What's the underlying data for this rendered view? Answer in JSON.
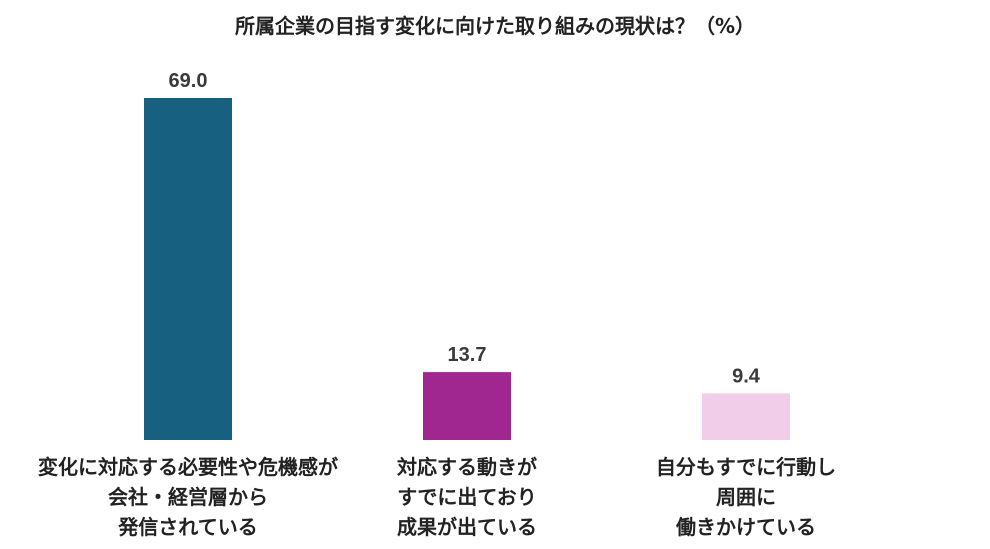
{
  "chart_data": {
    "type": "bar",
    "title": "所属企業の目指す変化に向けた取り組みの現状は？（%）",
    "categories": [
      [
        "変化に対応する必要性や危機感が",
        "会社・経営層から",
        "発信されている"
      ],
      [
        "対応する動きが",
        "すでに出ており",
        "成果が出ている"
      ],
      [
        "自分もすでに行動し",
        "周囲に",
        "働きかけている"
      ]
    ],
    "values": [
      69.0,
      13.7,
      9.4
    ],
    "value_labels": [
      "69.0",
      "13.7",
      "9.4"
    ],
    "colors": [
      "#18607f",
      "#a0278f",
      "#f1cde9"
    ],
    "ylim": [
      0,
      69.0
    ],
    "grid": false,
    "legend": "none"
  }
}
